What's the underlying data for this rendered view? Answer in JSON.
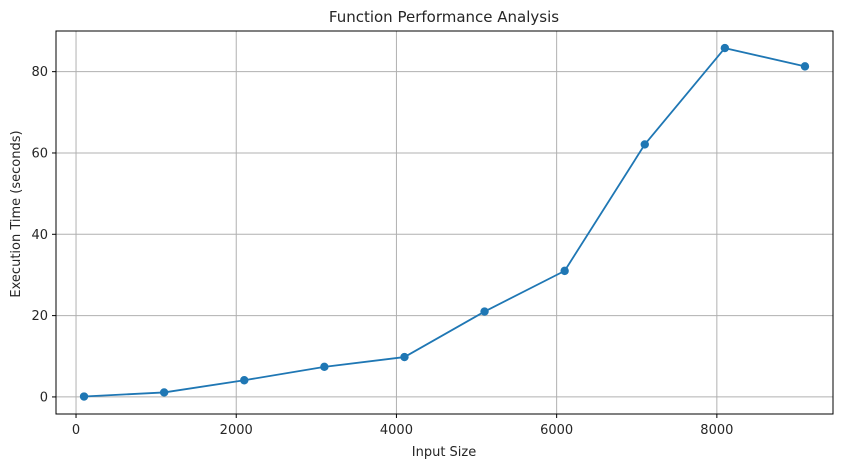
{
  "chart_data": {
    "type": "line",
    "title": "Function Performance Analysis",
    "xlabel": "Input Size",
    "ylabel": "Execution Time (seconds)",
    "x": [
      100,
      1100,
      2100,
      3100,
      4100,
      5100,
      6100,
      7100,
      8100,
      9100
    ],
    "series": [
      {
        "values": [
          0.1,
          1.1,
          4.1,
          7.4,
          9.8,
          21.0,
          31.0,
          62.1,
          85.8,
          81.3
        ],
        "color": "#1f77b4",
        "marker": "circle"
      }
    ],
    "xlim": [
      -250,
      9450
    ],
    "ylim": [
      -4.2,
      90
    ],
    "xticks": [
      0,
      2000,
      4000,
      6000,
      8000
    ],
    "yticks": [
      0,
      20,
      40,
      60,
      80
    ],
    "xtick_labels": [
      "0",
      "2000",
      "4000",
      "6000",
      "8000"
    ],
    "ytick_labels": [
      "0",
      "20",
      "40",
      "60",
      "80"
    ],
    "grid": true,
    "legend": false
  }
}
